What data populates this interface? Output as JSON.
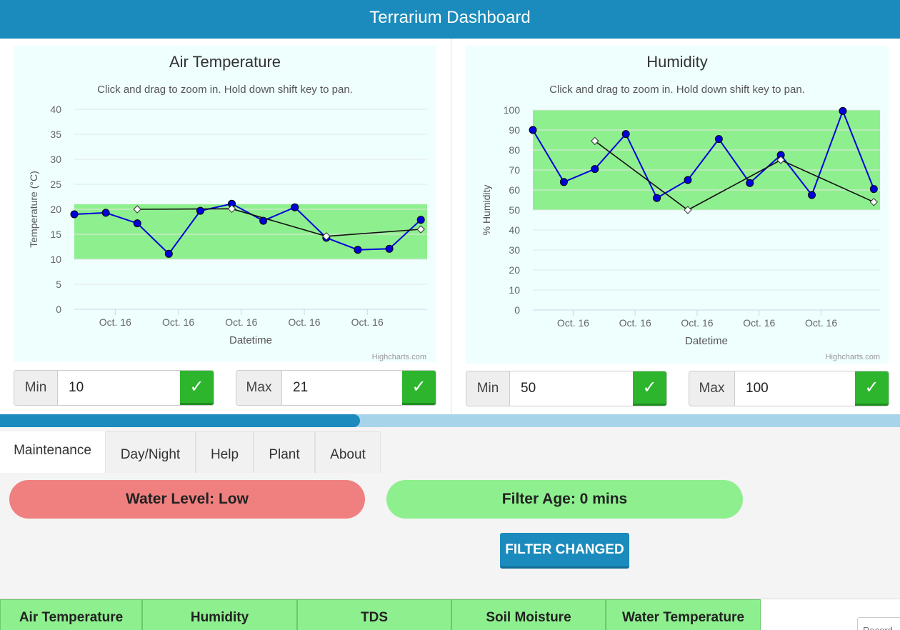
{
  "header": {
    "title": "Terrarium Dashboard"
  },
  "colors": {
    "header": "#1a8bbc",
    "chart_bg": "#eefffe",
    "band": "#8eef8e",
    "series_main": "#0000dd",
    "series_avg": "#111111",
    "ok_button": "#2db52d",
    "pill_low": "#f08080",
    "pill_ok": "#8eef8e"
  },
  "charts": {
    "temperature": {
      "title": "Air Temperature",
      "subtitle": "Click and drag to zoom in. Hold down shift key to pan.",
      "credits": "Highcharts.com",
      "controls": {
        "min_label": "Min",
        "min_value": "10",
        "max_label": "Max",
        "max_value": "21"
      }
    },
    "humidity": {
      "title": "Humidity",
      "subtitle": "Click and drag to zoom in. Hold down shift key to pan.",
      "credits": "Highcharts.com",
      "controls": {
        "min_label": "Min",
        "min_value": "50",
        "max_label": "Max",
        "max_value": "100"
      }
    }
  },
  "chart_data": [
    {
      "type": "line",
      "title": "Air Temperature",
      "subtitle": "Click and drag to zoom in. Hold down shift key to pan.",
      "xlabel": "Datetime",
      "ylabel": "Temperature (°C)",
      "ylim": [
        0,
        40
      ],
      "yticks": [
        0,
        5,
        10,
        15,
        20,
        25,
        30,
        35,
        40
      ],
      "xlim": [
        0,
        11.2
      ],
      "xticks": [
        {
          "x": 1.3,
          "label": "Oct. 16"
        },
        {
          "x": 3.3,
          "label": "Oct. 16"
        },
        {
          "x": 5.3,
          "label": "Oct. 16"
        },
        {
          "x": 7.3,
          "label": "Oct. 16"
        },
        {
          "x": 9.3,
          "label": "Oct. 16"
        }
      ],
      "band": [
        10,
        21
      ],
      "grid": true,
      "series": [
        {
          "values": [
            {
              "x": 0,
              "y": 19
            },
            {
              "x": 1,
              "y": 19.3
            },
            {
              "x": 2,
              "y": 17.2
            },
            {
              "x": 3,
              "y": 11.1
            },
            {
              "x": 4,
              "y": 19.7
            },
            {
              "x": 5,
              "y": 21.1
            },
            {
              "x": 6,
              "y": 17.7
            },
            {
              "x": 7,
              "y": 20.4
            },
            {
              "x": 8,
              "y": 14.3
            },
            {
              "x": 9,
              "y": 11.9
            },
            {
              "x": 10,
              "y": 12.1
            },
            {
              "x": 11,
              "y": 17.9
            }
          ]
        },
        {
          "values": [
            {
              "x": 2,
              "y": 20
            },
            {
              "x": 5,
              "y": 20.1
            },
            {
              "x": 8,
              "y": 14.6
            },
            {
              "x": 11,
              "y": 16
            }
          ]
        }
      ]
    },
    {
      "type": "line",
      "title": "Humidity",
      "subtitle": "Click and drag to zoom in. Hold down shift key to pan.",
      "xlabel": "Datetime",
      "ylabel": "% Humidity",
      "ylim": [
        0,
        100
      ],
      "yticks": [
        0,
        10,
        20,
        30,
        40,
        50,
        60,
        70,
        80,
        90,
        100
      ],
      "xlim": [
        0,
        11.2
      ],
      "xticks": [
        {
          "x": 1.3,
          "label": "Oct. 16"
        },
        {
          "x": 3.3,
          "label": "Oct. 16"
        },
        {
          "x": 5.3,
          "label": "Oct. 16"
        },
        {
          "x": 7.3,
          "label": "Oct. 16"
        },
        {
          "x": 9.3,
          "label": "Oct. 16"
        }
      ],
      "band": [
        50,
        100
      ],
      "grid": true,
      "series": [
        {
          "values": [
            {
              "x": 0,
              "y": 90
            },
            {
              "x": 1,
              "y": 64
            },
            {
              "x": 2,
              "y": 70.5
            },
            {
              "x": 3,
              "y": 88
            },
            {
              "x": 4,
              "y": 56
            },
            {
              "x": 5,
              "y": 65
            },
            {
              "x": 6,
              "y": 85.5
            },
            {
              "x": 7,
              "y": 63.5
            },
            {
              "x": 8,
              "y": 77.5
            },
            {
              "x": 9,
              "y": 57.5
            },
            {
              "x": 10,
              "y": 99.5
            },
            {
              "x": 11,
              "y": 60.5
            }
          ]
        },
        {
          "values": [
            {
              "x": 2,
              "y": 84.5
            },
            {
              "x": 5,
              "y": 50
            },
            {
              "x": 8,
              "y": 75
            },
            {
              "x": 11,
              "y": 54
            }
          ]
        }
      ]
    }
  ],
  "progress": {
    "fraction": 0.4
  },
  "tabs": [
    {
      "label": "Maintenance",
      "active": true
    },
    {
      "label": "Day/Night"
    },
    {
      "label": "Help"
    },
    {
      "label": "Plant"
    },
    {
      "label": "About"
    }
  ],
  "maintenance": {
    "water_level": "Water Level: Low",
    "filter_age": "Filter Age: 0 mins",
    "filter_button": "FILTER CHANGED"
  },
  "bottom_tabs": [
    "Air Temperature",
    "Humidity",
    "TDS",
    "Soil Moisture",
    "Water Temperature"
  ],
  "record": {
    "placeholder": "Record"
  }
}
